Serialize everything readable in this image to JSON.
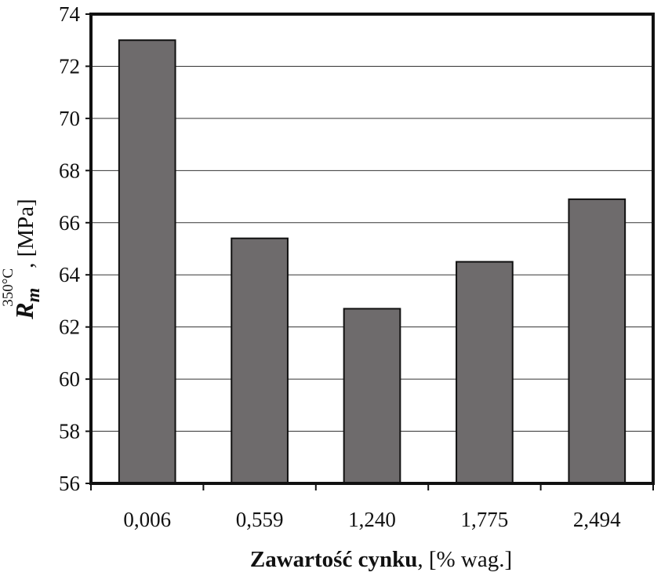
{
  "chart_data": {
    "type": "bar",
    "categories": [
      "0,006",
      "0,559",
      "1,240",
      "1,775",
      "2,494"
    ],
    "values": [
      73.0,
      65.4,
      62.7,
      64.5,
      66.9
    ],
    "ylim": [
      56,
      74
    ],
    "yticks": [
      56,
      58,
      60,
      62,
      64,
      66,
      68,
      70,
      72,
      74
    ],
    "xlabel": {
      "bold_part": "Zawartość cynku",
      "normal_part": ", [% wag.]"
    },
    "ylabel": {
      "symbol": "R",
      "subscript": "m",
      "superscript": "350°C",
      "rest": ", [MPa]"
    },
    "grid": true,
    "bar_color": "#6e6b6c",
    "legend": "none"
  }
}
